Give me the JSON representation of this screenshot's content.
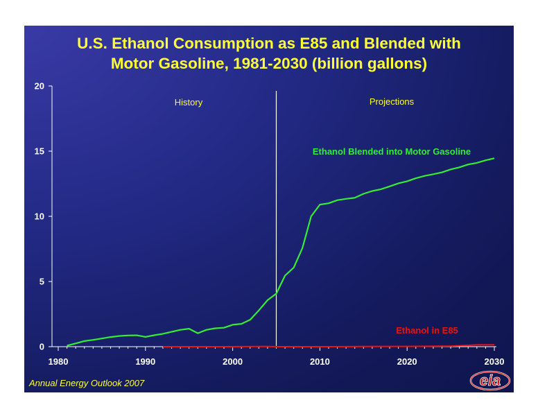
{
  "title_line1": "U.S. Ethanol Consumption as E85 and Blended with",
  "title_line2": "Motor Gasoline, 1981-2030 (billion gallons)",
  "footer": "Annual Energy Outlook 2007",
  "logo_text": "eia",
  "colors": {
    "background": "#1a2070",
    "title": "#ffff33",
    "blended": "#33ee33",
    "e85": "#ee1111",
    "axis": "#ffffff",
    "divider": "#ffffff"
  },
  "chart_data": {
    "type": "line",
    "title": "U.S. Ethanol Consumption as E85 and Blended with Motor Gasoline, 1981-2030 (billion gallons)",
    "xlabel": "",
    "ylabel": "",
    "xlim": [
      1980,
      2030
    ],
    "ylim": [
      0,
      20
    ],
    "x_ticks": [
      "1980",
      "1990",
      "2000",
      "2010",
      "2020",
      "2030"
    ],
    "y_ticks": [
      "0",
      "5",
      "10",
      "15",
      "20"
    ],
    "grid": false,
    "divider_year": 2005,
    "region_labels": {
      "history": "History",
      "projections": "Projections"
    },
    "series": [
      {
        "name": "Ethanol Blended into Motor Gasoline",
        "color": "#33ee33",
        "x": [
          1981,
          1982,
          1983,
          1984,
          1985,
          1986,
          1987,
          1988,
          1989,
          1990,
          1991,
          1992,
          1993,
          1994,
          1995,
          1996,
          1997,
          1998,
          1999,
          2000,
          2001,
          2002,
          2003,
          2004,
          2005,
          2006,
          2007,
          2008,
          2009,
          2010,
          2011,
          2012,
          2013,
          2014,
          2015,
          2016,
          2017,
          2018,
          2019,
          2020,
          2021,
          2022,
          2023,
          2024,
          2025,
          2026,
          2027,
          2028,
          2029,
          2030
        ],
        "values": [
          0.08,
          0.25,
          0.43,
          0.52,
          0.63,
          0.74,
          0.82,
          0.86,
          0.87,
          0.75,
          0.88,
          0.99,
          1.14,
          1.29,
          1.38,
          1.03,
          1.29,
          1.41,
          1.45,
          1.68,
          1.75,
          2.07,
          2.78,
          3.57,
          4.07,
          5.45,
          6.07,
          7.57,
          10.0,
          10.9,
          11.0,
          11.24,
          11.34,
          11.42,
          11.73,
          11.94,
          12.08,
          12.3,
          12.53,
          12.69,
          12.92,
          13.1,
          13.23,
          13.37,
          13.6,
          13.76,
          13.98,
          14.1,
          14.3,
          14.45
        ]
      },
      {
        "name": "Ethanol in E85",
        "color": "#ee1111",
        "x": [
          1992,
          1995,
          2000,
          2003,
          2004,
          2005,
          2010,
          2015,
          2020,
          2025,
          2027,
          2028,
          2030
        ],
        "values": [
          0.0,
          0.0,
          0.0,
          0.01,
          0.01,
          0.0,
          0.0,
          0.01,
          0.02,
          0.05,
          0.1,
          0.14,
          0.15
        ]
      }
    ]
  }
}
